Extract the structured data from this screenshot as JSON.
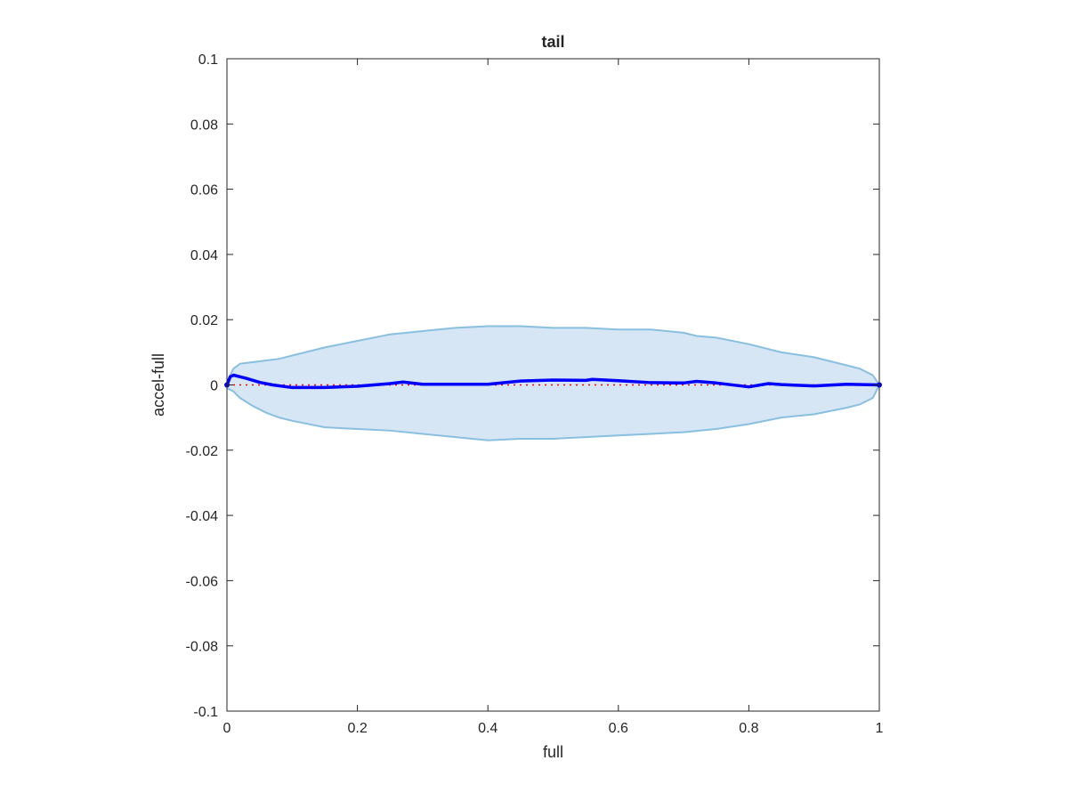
{
  "chart_data": {
    "type": "line",
    "title": "tail",
    "xlabel": "full",
    "ylabel": "accel-full",
    "xlim": [
      0,
      1
    ],
    "ylim": [
      -0.1,
      0.1
    ],
    "x_ticks": [
      0,
      0.2,
      0.4,
      0.6,
      0.8,
      1
    ],
    "x_tick_labels": [
      "0",
      "0.2",
      "0.4",
      "0.6",
      "0.8",
      "1"
    ],
    "y_ticks": [
      0.1,
      0.08,
      0.06,
      0.04,
      0.02,
      0,
      -0.02,
      -0.04,
      -0.06,
      -0.08,
      -0.1
    ],
    "y_tick_labels": [
      "0.1",
      "0.08",
      "0.06",
      "0.04",
      "0.02",
      "0",
      "-0.02",
      "-0.04",
      "-0.06",
      "-0.08",
      "-0.1"
    ],
    "grid": false,
    "colors": {
      "mean_line": "#0000ff",
      "band_fill": "#d6e6f4",
      "band_edge": "#89bfe0",
      "reference_line": "#ff0000",
      "axes": "#262626"
    },
    "series": [
      {
        "role": "mean",
        "x": [
          0,
          0.005,
          0.01,
          0.02,
          0.03,
          0.05,
          0.07,
          0.1,
          0.15,
          0.2,
          0.25,
          0.27,
          0.3,
          0.35,
          0.4,
          0.45,
          0.5,
          0.55,
          0.56,
          0.6,
          0.65,
          0.7,
          0.72,
          0.75,
          0.8,
          0.83,
          0.85,
          0.9,
          0.95,
          1.0
        ],
        "y": [
          0,
          0.0025,
          0.003,
          0.0025,
          0.002,
          0.0008,
          0,
          -0.0008,
          -0.0008,
          -0.0004,
          0.0004,
          0.0009,
          0.0002,
          0.0002,
          0.0002,
          0.0012,
          0.0015,
          0.0014,
          0.0017,
          0.0013,
          0.0007,
          0.0006,
          0.0011,
          0.0006,
          -0.0006,
          0.0004,
          0.0001,
          -0.0003,
          0.0002,
          0
        ]
      },
      {
        "role": "band-upper",
        "x": [
          0,
          0.01,
          0.02,
          0.04,
          0.06,
          0.08,
          0.1,
          0.15,
          0.2,
          0.25,
          0.3,
          0.35,
          0.4,
          0.45,
          0.5,
          0.55,
          0.6,
          0.65,
          0.7,
          0.72,
          0.75,
          0.8,
          0.85,
          0.9,
          0.95,
          0.97,
          0.99,
          1.0
        ],
        "y": [
          0.001,
          0.005,
          0.0065,
          0.007,
          0.0075,
          0.008,
          0.009,
          0.0115,
          0.0135,
          0.0155,
          0.0165,
          0.0175,
          0.018,
          0.018,
          0.0175,
          0.0175,
          0.017,
          0.017,
          0.016,
          0.015,
          0.0145,
          0.0125,
          0.01,
          0.0085,
          0.006,
          0.005,
          0.003,
          0
        ]
      },
      {
        "role": "band-lower",
        "x": [
          0,
          0.01,
          0.02,
          0.04,
          0.06,
          0.08,
          0.1,
          0.15,
          0.2,
          0.25,
          0.3,
          0.35,
          0.4,
          0.45,
          0.5,
          0.55,
          0.6,
          0.65,
          0.7,
          0.75,
          0.8,
          0.85,
          0.9,
          0.95,
          0.97,
          0.99,
          1.0
        ],
        "y": [
          -0.001,
          -0.002,
          -0.004,
          -0.0065,
          -0.0085,
          -0.01,
          -0.011,
          -0.013,
          -0.0135,
          -0.014,
          -0.015,
          -0.016,
          -0.017,
          -0.0165,
          -0.0165,
          -0.016,
          -0.0155,
          -0.015,
          -0.0145,
          -0.0135,
          -0.012,
          -0.01,
          -0.009,
          -0.007,
          -0.006,
          -0.004,
          0
        ]
      },
      {
        "role": "reference",
        "x": [
          0,
          1
        ],
        "y": [
          0,
          0
        ]
      }
    ]
  }
}
